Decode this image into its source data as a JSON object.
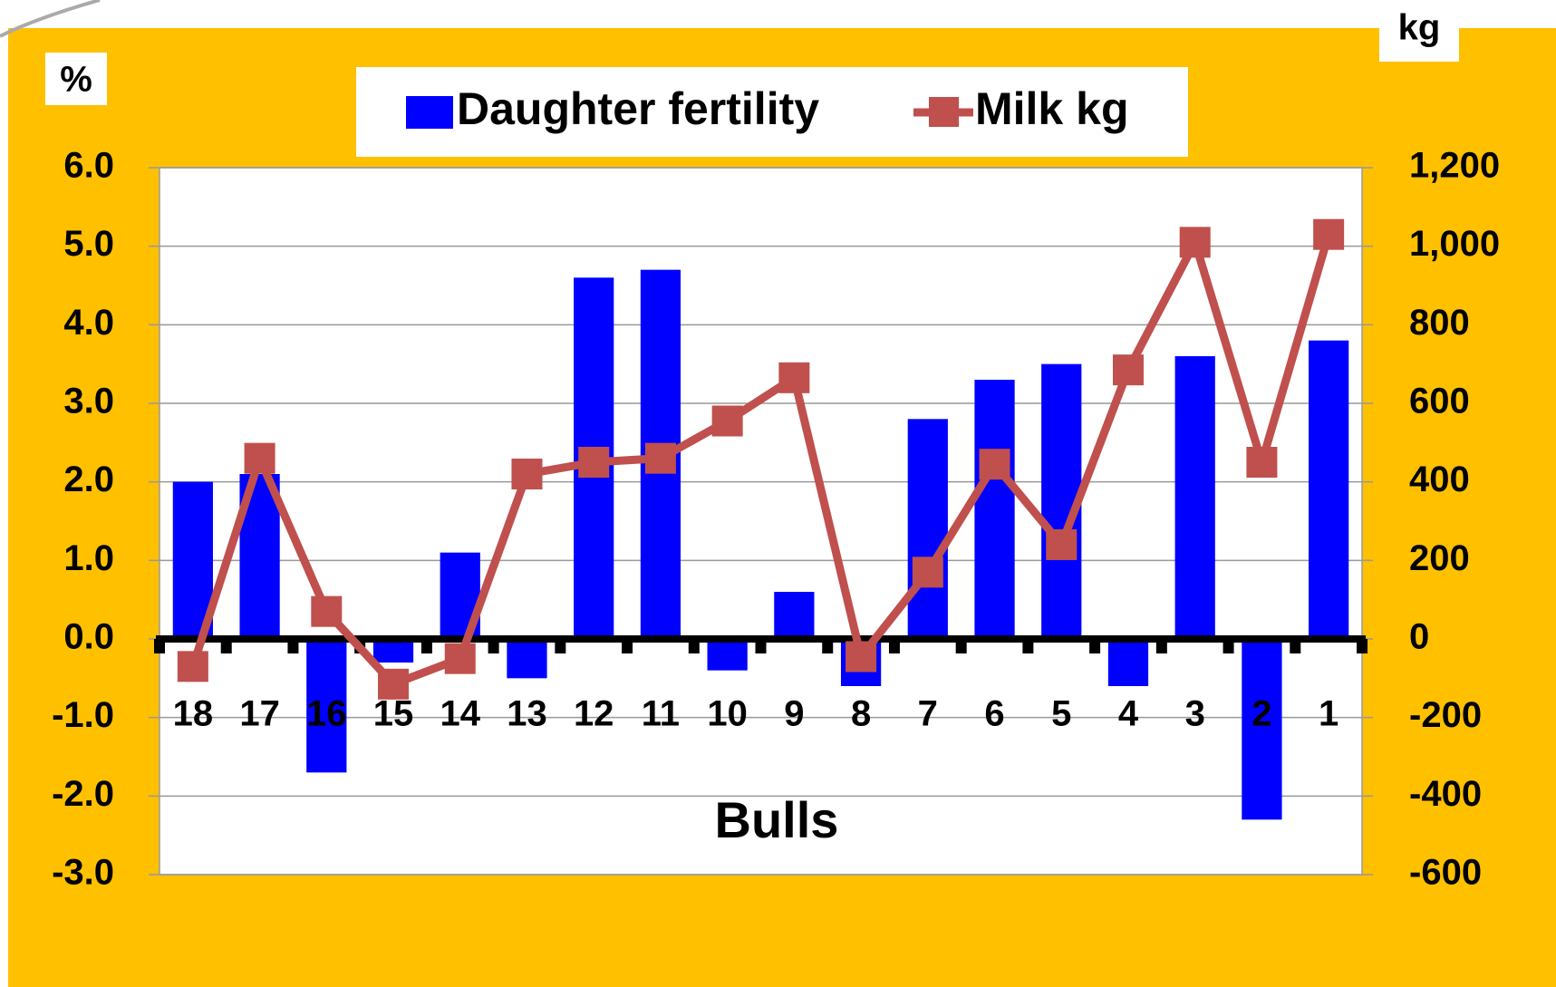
{
  "chart_data": {
    "type": "bar_line",
    "y_label": "%",
    "y2_label": "kg",
    "x_label": "Bulls",
    "categories": [
      "18",
      "17",
      "16",
      "15",
      "14",
      "13",
      "12",
      "11",
      "10",
      "9",
      "8",
      "7",
      "6",
      "5",
      "4",
      "3",
      "2",
      "1"
    ],
    "series": [
      {
        "name": "Daughter fertility",
        "type": "bar",
        "color": "#0000ff",
        "axis": "y",
        "values": [
          2.0,
          2.1,
          -1.7,
          -0.3,
          1.1,
          -0.5,
          4.6,
          4.7,
          -0.4,
          0.6,
          -0.6,
          2.8,
          3.3,
          3.5,
          -0.6,
          3.6,
          -2.3,
          3.8
        ]
      },
      {
        "name": "Milk kg",
        "type": "line",
        "color": "#c0504d",
        "axis": "y2",
        "values": [
          -70,
          460,
          70,
          -115,
          -50,
          420,
          450,
          460,
          555,
          665,
          -45,
          170,
          445,
          240,
          685,
          1010,
          450,
          1030
        ]
      }
    ],
    "ylim": [
      -3,
      6
    ],
    "yticks": [
      {
        "value": 6,
        "label": "6.0"
      },
      {
        "value": 5,
        "label": "5.0"
      },
      {
        "value": 4,
        "label": "4.0"
      },
      {
        "value": 3,
        "label": "3.0"
      },
      {
        "value": 2,
        "label": "2.0"
      },
      {
        "value": 1,
        "label": "1.0"
      },
      {
        "value": 0,
        "label": "0.0"
      },
      {
        "value": -1,
        "label": "-1.0"
      },
      {
        "value": -2,
        "label": "-2.0"
      },
      {
        "value": -3,
        "label": "-3.0"
      }
    ],
    "y2lim": [
      -600,
      1200
    ],
    "y2ticks": [
      {
        "value": 1200,
        "label": "1,200"
      },
      {
        "value": 1000,
        "label": "1,000"
      },
      800,
      600,
      400,
      200,
      0,
      -200,
      -400,
      -600
    ],
    "grid": true
  }
}
